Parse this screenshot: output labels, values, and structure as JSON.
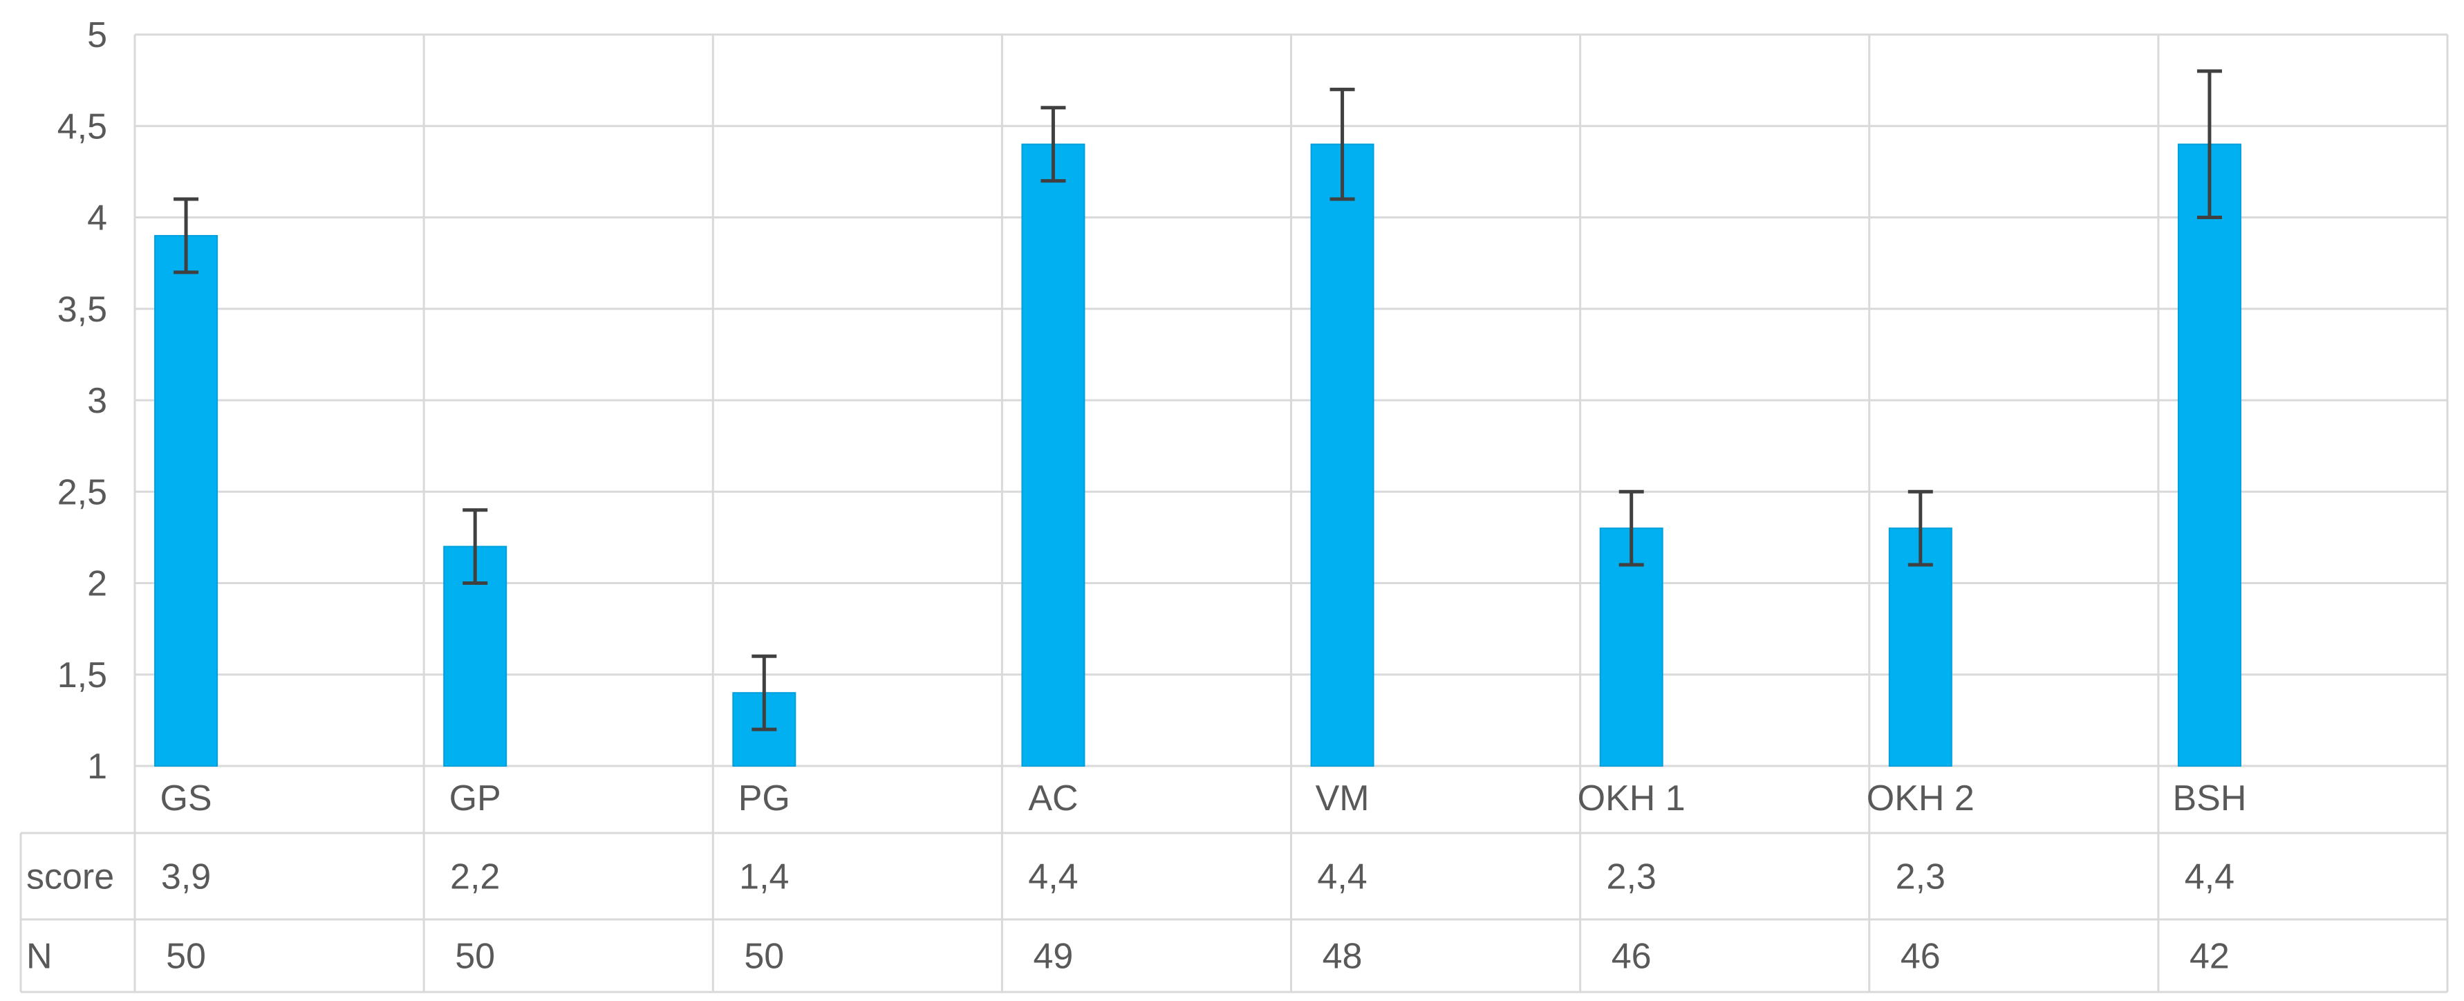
{
  "chart_data": {
    "type": "bar",
    "categories": [
      "GS",
      "GP",
      "PG",
      "AC",
      "VM",
      "OKH 1",
      "OKH 2",
      "BSH"
    ],
    "series": [
      {
        "values": [
          3.9,
          2.2,
          1.4,
          4.4,
          4.4,
          2.3,
          2.3,
          4.4
        ],
        "error": [
          0.2,
          0.2,
          0.2,
          0.2,
          0.3,
          0.2,
          0.2,
          0.4
        ],
        "color": "#00B0F0"
      }
    ],
    "ylim": [
      1,
      5
    ],
    "yticks": [
      "1",
      "1,5",
      "2",
      "2,5",
      "3",
      "3,5",
      "4",
      "4,5",
      "5"
    ],
    "ytick_values": [
      1,
      1.5,
      2,
      2.5,
      3,
      3.5,
      4,
      4.5,
      5
    ],
    "grid": true,
    "title": "",
    "xlabel": "",
    "ylabel": "",
    "table": {
      "rows": [
        {
          "label": "score",
          "values": [
            "3,9",
            "2,2",
            "1,4",
            "4,4",
            "4,4",
            "2,3",
            "2,3",
            "4,4"
          ]
        },
        {
          "label": "N",
          "values": [
            "50",
            "50",
            "50",
            "49",
            "48",
            "46",
            "46",
            "42"
          ]
        }
      ]
    }
  },
  "colors": {
    "bar": "#00B0F0",
    "bar_border": "#00A0DC",
    "grid": "#D9D9D9",
    "text": "#595959",
    "error_bar": "#404040"
  }
}
